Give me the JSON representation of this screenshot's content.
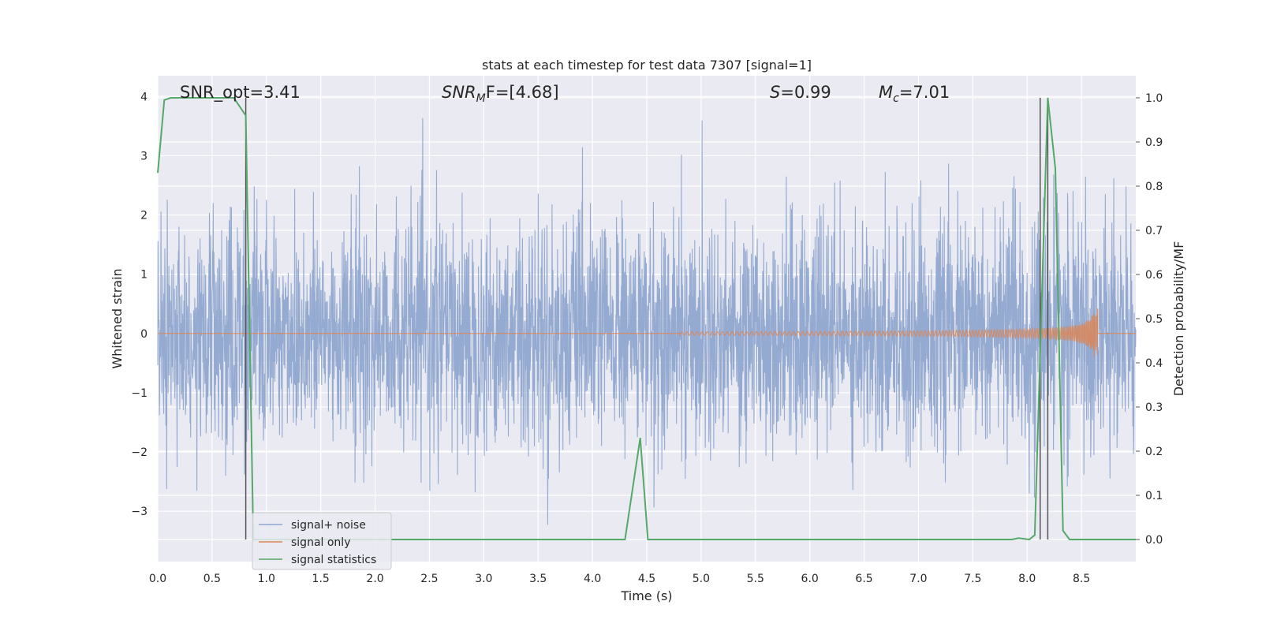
{
  "chart_data": {
    "type": "line",
    "title": "stats at each timestep for test data 7307 [signal=1]",
    "xlabel": "Time (s)",
    "ylabel": "Whitened strain",
    "y2label": "Detection probability/MF",
    "xlim": [
      0.0,
      9.0
    ],
    "ylim": [
      -3.85,
      4.35
    ],
    "y2lim": [
      -0.05,
      1.05
    ],
    "xticks": [
      "0.0",
      "0.5",
      "1.0",
      "1.5",
      "2.0",
      "2.5",
      "3.0",
      "3.5",
      "4.0",
      "4.5",
      "5.0",
      "5.5",
      "6.0",
      "6.5",
      "7.0",
      "7.5",
      "8.0",
      "8.5"
    ],
    "yticks": [
      "4",
      "3",
      "2",
      "1",
      "0",
      "−1",
      "−2",
      "−3"
    ],
    "y2ticks": [
      "1.0",
      "0.9",
      "0.8",
      "0.7",
      "0.6",
      "0.5",
      "0.4",
      "0.3",
      "0.2",
      "0.1",
      "0.0"
    ],
    "grid": true,
    "legend_position": "lower-left",
    "annotations": [
      {
        "label": "SNR_opt=3.41",
        "italic_prefix": "",
        "sub": "",
        "rest": ""
      },
      {
        "label": "SNR",
        "italic_prefix": "SNR",
        "sub": "M",
        "rest": "F=[4.68]"
      },
      {
        "label": "S",
        "italic_prefix": "S",
        "sub": "",
        "rest": "=0.99"
      },
      {
        "label": "M",
        "italic_prefix": "M",
        "sub": "c",
        "rest": "=7.01"
      }
    ],
    "vlines_x": [
      0.81,
      8.12,
      8.19
    ],
    "series": [
      {
        "name": "signal+ noise",
        "color": "#8fa6cf",
        "description_values": "white noise, std ~0.95, range about -3.5 to 4.0"
      },
      {
        "name": "signal only",
        "color": "#dd8452",
        "chirp_start": 4.8,
        "chirp_end": 8.65,
        "peak_amplitude": 0.45
      },
      {
        "name": "signal statistics",
        "color": "#55a868",
        "x": [
          0.0,
          0.06,
          0.12,
          0.2,
          0.3,
          0.4,
          0.5,
          0.6,
          0.7,
          0.81,
          0.88,
          1.0,
          2.0,
          3.0,
          4.0,
          4.3,
          4.44,
          4.51,
          5.0,
          6.0,
          7.0,
          7.5,
          7.86,
          7.92,
          8.02,
          8.07,
          8.19,
          8.26,
          8.33,
          8.39,
          8.5,
          9.0
        ],
        "values": [
          0.83,
          0.995,
          1.0,
          1.0,
          1.0,
          1.0,
          1.0,
          1.0,
          1.0,
          0.96,
          0.0,
          0.0,
          0.0,
          0.0,
          0.0,
          0.0,
          0.23,
          0.0,
          0.0,
          0.0,
          0.0,
          0.0,
          0.0,
          0.003,
          0.0,
          0.01,
          1.0,
          0.84,
          0.02,
          0.0,
          0.0,
          0.0
        ]
      }
    ]
  },
  "annotation_texts": {
    "snr_opt": "SNR_opt=3.41",
    "snr_mf_main": "SNR",
    "snr_mf_sub": "M",
    "snr_mf_rest": "F=[4.68]",
    "s_main": "S",
    "s_rest": "=0.99",
    "mc_main": "M",
    "mc_sub": "c",
    "mc_rest": "=7.01"
  },
  "colors": {
    "background": "#eaeaf2",
    "grid": "#ffffff",
    "vline": "#555555"
  }
}
